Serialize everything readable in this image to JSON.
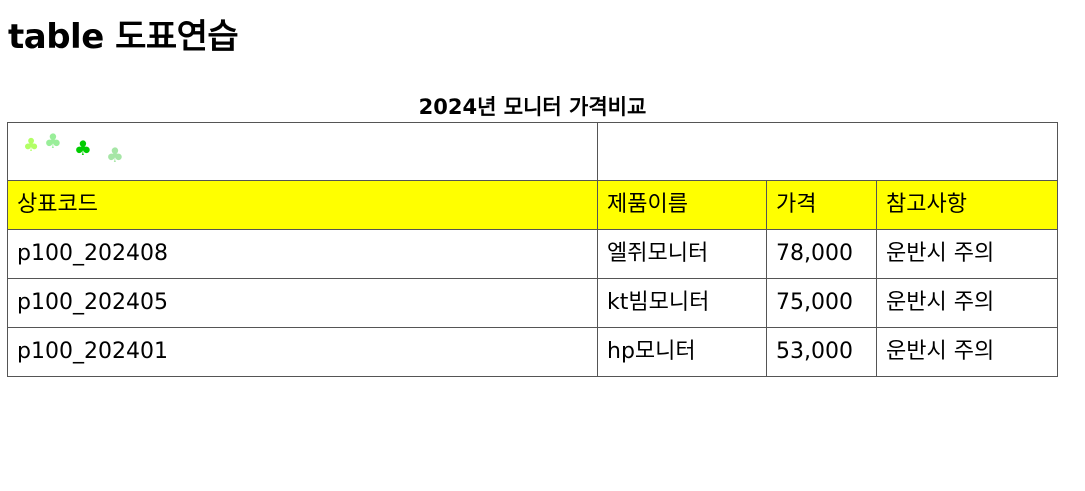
{
  "page": {
    "title": "table 도표연습"
  },
  "table": {
    "caption": "2024년 모니터 가격비교",
    "banner": {
      "icons": [
        {
          "name": "clover-icon",
          "color": "#b2ff66"
        },
        {
          "name": "clover-icon",
          "color": "#99ee99"
        },
        {
          "name": "clover-icon",
          "color": "#00cc00"
        },
        {
          "name": "clover-icon",
          "color": "#a6e6a6"
        }
      ]
    },
    "headers": [
      "상표코드",
      "제품이름",
      "가격",
      "참고사항"
    ],
    "rows": [
      [
        "p100_202408",
        "엘쥐모니터",
        "78,000",
        "운반시 주의"
      ],
      [
        "p100_202405",
        "kt빔모니터",
        "75,000",
        "운반시 주의"
      ],
      [
        "p100_202401",
        "hp모니터",
        "53,000",
        "운반시 주의"
      ]
    ],
    "header_bg": "#ffff00"
  }
}
